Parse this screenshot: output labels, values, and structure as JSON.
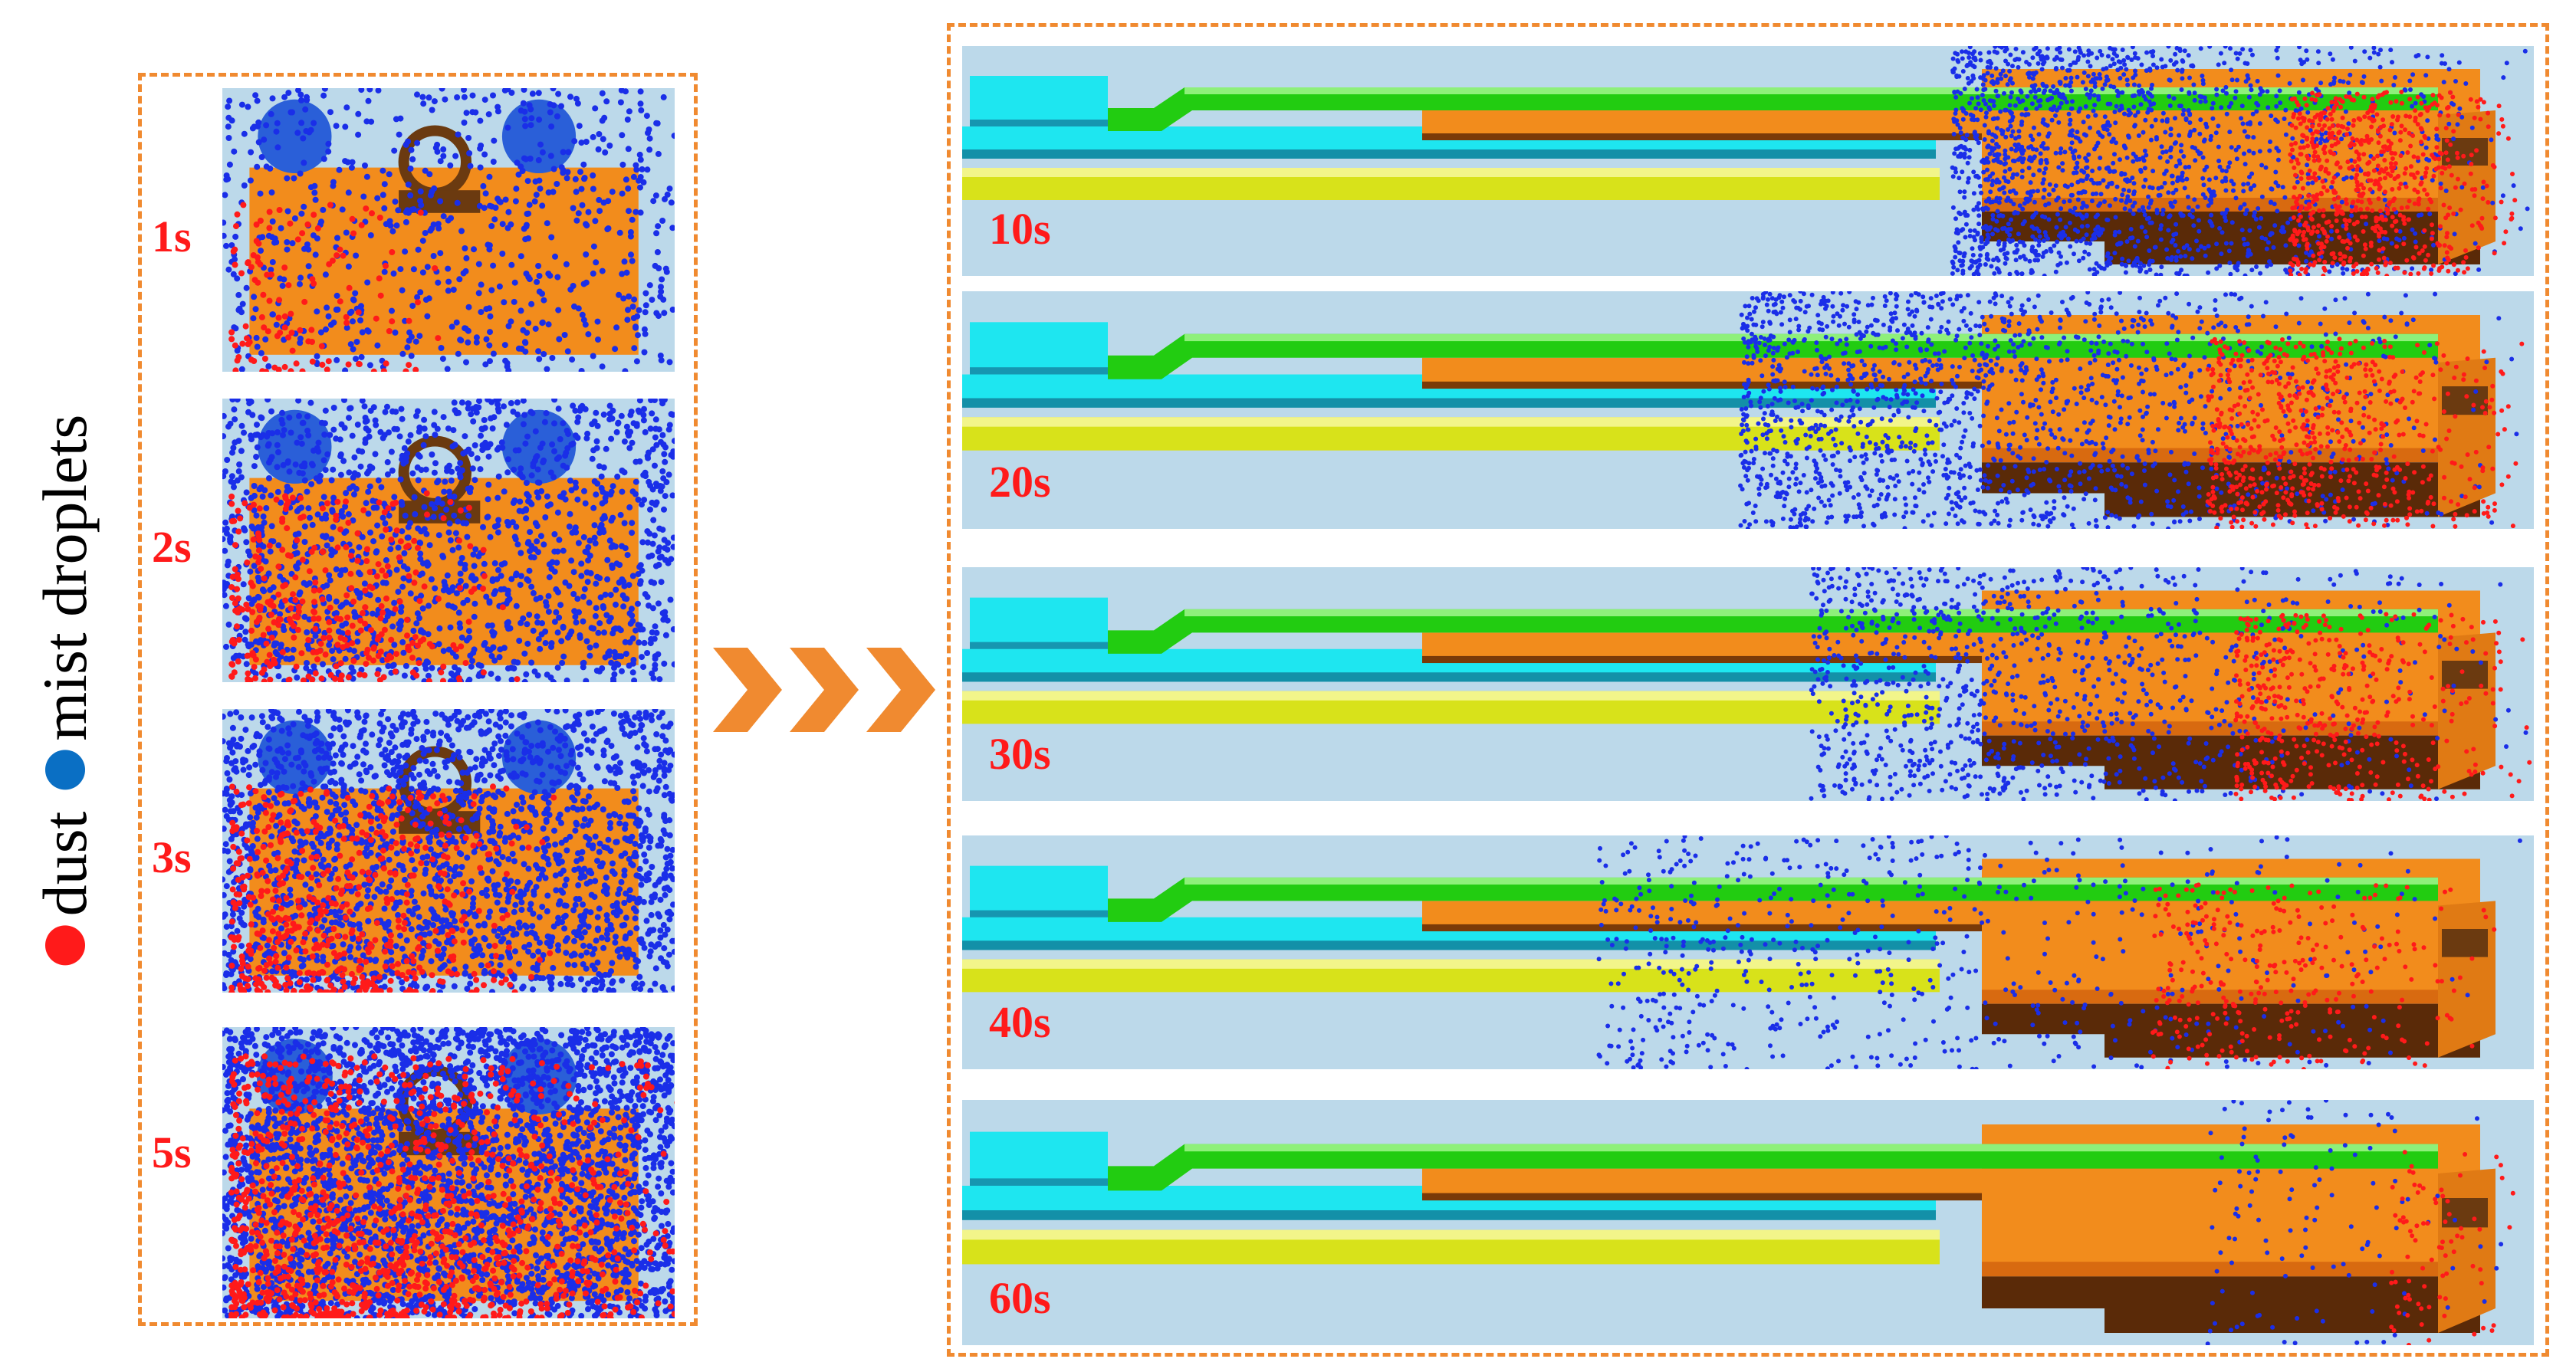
{
  "legend": {
    "dust_label": "dust",
    "mist_label": "mist droplets",
    "dust_color": "#ff1a1a",
    "mist_color": "#0a6fc4"
  },
  "left_panels": [
    {
      "label": "1s"
    },
    {
      "label": "2s"
    },
    {
      "label": "3s"
    },
    {
      "label": "5s"
    }
  ],
  "right_panels": [
    {
      "label": "10s"
    },
    {
      "label": "20s"
    },
    {
      "label": "30s"
    },
    {
      "label": "40s"
    },
    {
      "label": "60s"
    }
  ],
  "colors": {
    "frame": "#f08a30",
    "arrow": "#f08a30",
    "background": "#bcd9ea",
    "block": "#f28c1c",
    "dark": "#5a2a08",
    "pipe_green": "#22cc11",
    "pipe_yellow": "#d8e21a",
    "cyan": "#1ee6f0",
    "time_text": "#ff1a1a"
  }
}
